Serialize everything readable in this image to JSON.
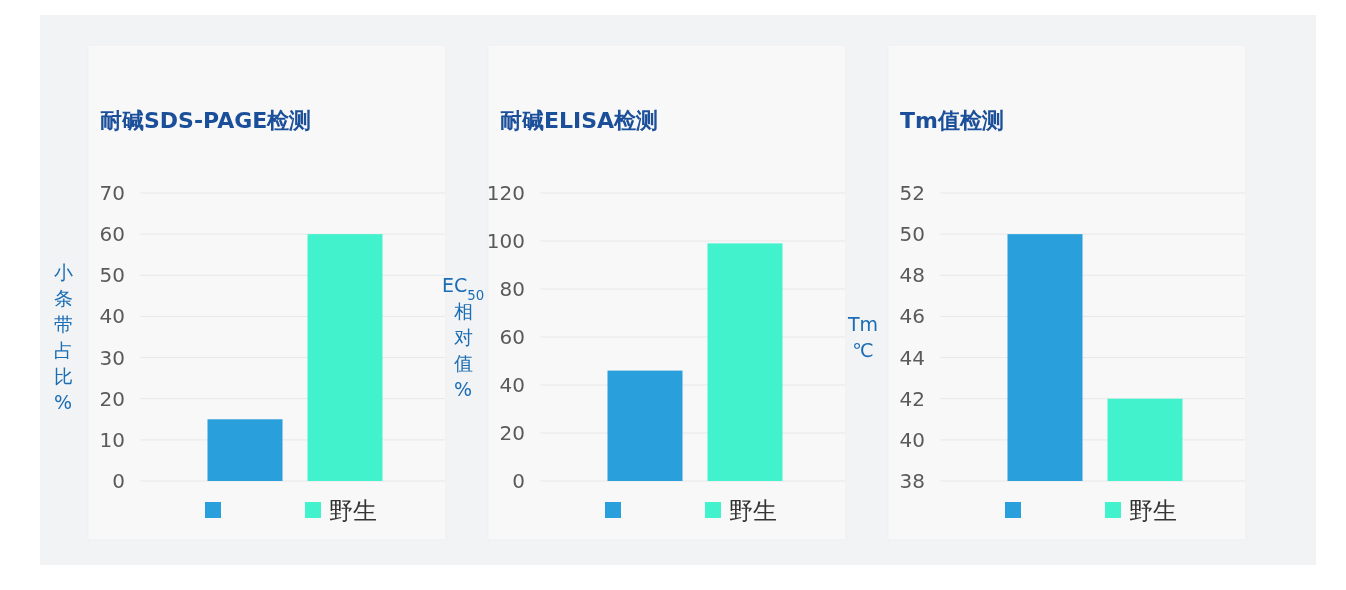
{
  "chart_data": [
    {
      "type": "bar",
      "title": "耐碱SDS-PAGE检测",
      "ylabel": "小条带占比%",
      "categories": [
        null,
        "野生"
      ],
      "values": [
        15,
        60
      ],
      "colors": [
        "#29a0dc",
        "#42f2cc"
      ],
      "ylim": [
        0,
        70
      ],
      "yticks": [
        0,
        10,
        20,
        30,
        40,
        50,
        60,
        70
      ],
      "grid": "y"
    },
    {
      "type": "bar",
      "title": "耐碱ELISA检测",
      "ylabel": "EC$_{50}$相对值%",
      "categories": [
        null,
        "野生"
      ],
      "values": [
        46,
        99
      ],
      "colors": [
        "#29a0dc",
        "#42f2cc"
      ],
      "ylim": [
        0,
        120
      ],
      "yticks": [
        0,
        20,
        40,
        60,
        80,
        100,
        120
      ],
      "grid": "y"
    },
    {
      "type": "bar",
      "title": "Tm值检测",
      "ylabel": "Tm℃",
      "categories": [
        null,
        "野生"
      ],
      "values": [
        50,
        42
      ],
      "colors": [
        "#29a0dc",
        "#42f2cc"
      ],
      "ylim": [
        38,
        52
      ],
      "yticks": [
        38,
        40,
        42,
        44,
        46,
        48,
        50,
        52
      ],
      "grid": "y"
    }
  ]
}
